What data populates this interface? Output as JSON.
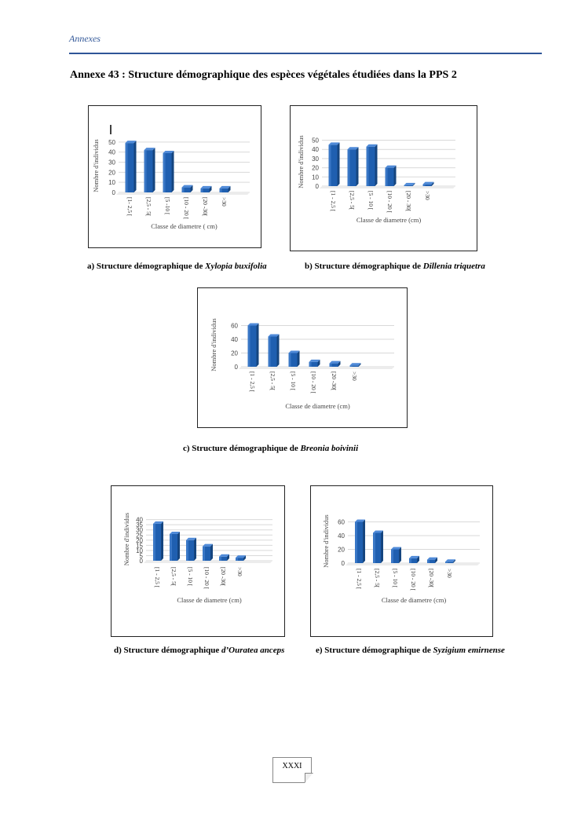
{
  "header": {
    "running_head": "Annexes"
  },
  "title": "Annexe 43 : Structure démographique des espèces végétales étudiées dans la PPS 2",
  "colors": {
    "bar": "#1f5fb0",
    "bar_light": "#4f8ad8",
    "bar_dark": "#15457f",
    "grid": "#d9d9d9",
    "accent": "#2f5597"
  },
  "captions": {
    "a": {
      "prefix": "a)  Structure démographique de ",
      "species": "Xylopia buxifolia"
    },
    "b": {
      "prefix": "b) Structure démographique de ",
      "species": "Dillenia  triquetra"
    },
    "c": {
      "prefix": "c) Structure démographique de ",
      "species": "Breonia  boivinii"
    },
    "d": {
      "prefix": "d) Structure démographique ",
      "species": "d’Ouratea anceps"
    },
    "e": {
      "prefix": "e) Structure démographique de ",
      "species": "Syzigium emirnense"
    }
  },
  "page_number": "XXXI",
  "chart_data": [
    {
      "id": "a",
      "type": "bar",
      "title": "",
      "xlabel": "Classe de diametre ( cm)",
      "ylabel": "Nombre d'individus",
      "categories": [
        "[1- 2,5 [",
        "[2,5 - 5[",
        "[5 -10 [",
        "[10 - 20 [",
        "[20 -30[",
        ">30"
      ],
      "values": [
        49,
        42,
        39,
        5,
        4,
        4
      ],
      "yticks": [
        0,
        10,
        20,
        30,
        40,
        50
      ],
      "ytick_labels": [
        "0",
        "10",
        "20",
        "30",
        "40",
        "50"
      ],
      "ylim": [
        0,
        53
      ]
    },
    {
      "id": "b",
      "type": "bar",
      "title": "",
      "xlabel": "Classe de diametre (cm)",
      "ylabel": "Nombre d'individus",
      "categories": [
        "[1 - 2,5 [",
        "[2,5 - 5[",
        "[5 - 10 [",
        "[10 - 20 [",
        "[20 - 30[",
        ">30"
      ],
      "values": [
        45,
        40,
        43,
        20,
        1,
        2
      ],
      "yticks": [
        0,
        10,
        20,
        30,
        40,
        50
      ],
      "ytick_labels": [
        "0",
        "10",
        "20",
        "30",
        "40",
        "50"
      ],
      "ylim": [
        0,
        53
      ]
    },
    {
      "id": "c",
      "type": "bar",
      "title": "",
      "xlabel": "Classe de diametre (cm)",
      "ylabel": "Nombre d'individus",
      "categories": [
        "[1 - 2,5 [",
        "[2,5 - 5[",
        "[5 - 10 [",
        "[10 - 20 [",
        "[20 -30[",
        ">30"
      ],
      "values": [
        60,
        44,
        20,
        7,
        5,
        2
      ],
      "yticks": [
        0,
        20,
        40,
        60
      ],
      "ytick_labels": [
        "0",
        "20",
        "40",
        "60"
      ],
      "ylim": [
        0,
        64
      ]
    },
    {
      "id": "d",
      "type": "bar",
      "title": "",
      "xlabel": "Classe de diametre (cm)",
      "ylabel": "Nombre d'individus",
      "categories": [
        "[1 - 2,5 [",
        "[2,5 - 5[",
        "[5 - 10 [",
        "[10 - 20 [",
        "[20 -30[",
        ">30"
      ],
      "values": [
        36,
        26,
        20,
        14,
        4,
        3
      ],
      "yticks": [
        0,
        5,
        10,
        15,
        20,
        25,
        30,
        35,
        40
      ],
      "ytick_labels": [
        "0",
        "5",
        "10",
        "15",
        "20",
        "25",
        "30",
        "35",
        "40"
      ],
      "ylim": [
        0,
        42
      ]
    },
    {
      "id": "e",
      "type": "bar",
      "title": "",
      "xlabel": "Classe de diametre (cm)",
      "ylabel": "Nombre d'individus",
      "categories": [
        "[1 - 2,5 [",
        "[2,5 - 5[",
        "[5 - 10 [",
        "[10 - 20 [",
        "[20 -30[",
        ">30"
      ],
      "values": [
        60,
        44,
        20,
        7,
        5,
        2
      ],
      "yticks": [
        0,
        20,
        40,
        60
      ],
      "ytick_labels": [
        "0",
        "20",
        "40",
        "60"
      ],
      "ylim": [
        0,
        64
      ]
    }
  ]
}
